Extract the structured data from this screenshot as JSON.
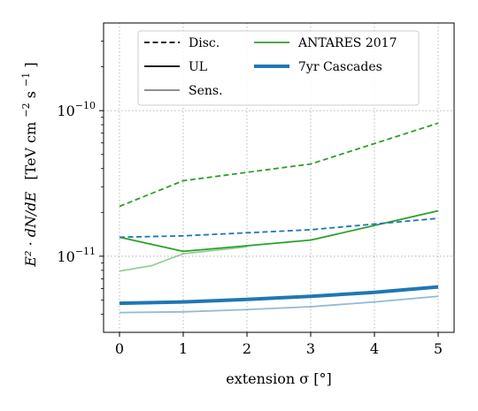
{
  "chart_data": {
    "type": "line",
    "xlabel": "extension σ [°]",
    "ylabel": "E² · dN/dE  [TeV cm⁻² s⁻¹]",
    "ylabel_parts": {
      "main": "E² · dN/dE",
      "unit_open": "[TeV cm",
      "unit_exp1": "−2",
      "unit_mid": " s",
      "unit_exp2": "−1",
      "unit_close": "]"
    },
    "xlim": [
      -0.25,
      5.25
    ],
    "ylim": [
      3e-12,
      4e-10
    ],
    "yscale": "log",
    "grid": true,
    "grid_style": "dotted",
    "x_ticks": [
      {
        "value": 0,
        "label": "0"
      },
      {
        "value": 1,
        "label": "1"
      },
      {
        "value": 2,
        "label": "2"
      },
      {
        "value": 3,
        "label": "3"
      },
      {
        "value": 4,
        "label": "4"
      },
      {
        "value": 5,
        "label": "5"
      }
    ],
    "y_ticks": [
      {
        "value": 1e-11,
        "base": "10",
        "exp": "−11"
      },
      {
        "value": 1e-10,
        "base": "10",
        "exp": "−10"
      }
    ],
    "series": [
      {
        "key": "antares_disc",
        "color": "#2ca02c",
        "style": "dashed",
        "width": 1.8,
        "alpha": 1,
        "x": [
          0,
          1,
          3,
          5
        ],
        "y": [
          2.2e-11,
          3.3e-11,
          4.3e-11,
          8.2e-11
        ]
      },
      {
        "key": "antares_ul",
        "color": "#2ca02c",
        "style": "solid",
        "width": 1.8,
        "alpha": 1,
        "x": [
          0,
          1,
          3,
          5
        ],
        "y": [
          1.35e-11,
          1.08e-11,
          1.29e-11,
          2.05e-11
        ]
      },
      {
        "key": "antares_sens",
        "color": "#2ca02c",
        "style": "solid",
        "width": 1.8,
        "alpha": 0.5,
        "x": [
          0,
          0.5,
          1,
          2
        ],
        "y": [
          7.9e-12,
          8.6e-12,
          1.04e-11,
          1.16e-11
        ]
      },
      {
        "key": "cascades_disc",
        "color": "#1f77b4",
        "style": "dashed",
        "width": 1.8,
        "alpha": 1,
        "x": [
          0,
          1,
          3,
          5
        ],
        "y": [
          1.35e-11,
          1.38e-11,
          1.52e-11,
          1.82e-11
        ]
      },
      {
        "key": "cascades_ul",
        "color": "#1f77b4",
        "style": "solid",
        "width": 4,
        "alpha": 1,
        "x": [
          0,
          1,
          2,
          3,
          4,
          5
        ],
        "y": [
          4.75e-12,
          4.85e-12,
          5.05e-12,
          5.3e-12,
          5.65e-12,
          6.15e-12
        ]
      },
      {
        "key": "cascades_sens",
        "color": "#1f77b4",
        "style": "solid",
        "width": 1.8,
        "alpha": 0.5,
        "x": [
          0,
          1,
          2,
          3,
          4,
          5
        ],
        "y": [
          4.1e-12,
          4.15e-12,
          4.3e-12,
          4.5e-12,
          4.85e-12,
          5.3e-12
        ]
      }
    ],
    "legend": {
      "placement": "upper center",
      "entries": [
        {
          "label": "Disc.",
          "color": "#000000",
          "style": "dashed",
          "width": 1.8,
          "alpha": 1
        },
        {
          "label": "UL",
          "color": "#000000",
          "style": "solid",
          "width": 1.8,
          "alpha": 1
        },
        {
          "label": "Sens.",
          "color": "#808080",
          "style": "solid",
          "width": 1.8,
          "alpha": 1
        },
        {
          "label": "ANTARES 2017",
          "color": "#2ca02c",
          "style": "solid",
          "width": 1.8,
          "alpha": 1
        },
        {
          "label": "7yr Cascades",
          "color": "#1f77b4",
          "style": "solid",
          "width": 4,
          "alpha": 1
        }
      ]
    }
  }
}
